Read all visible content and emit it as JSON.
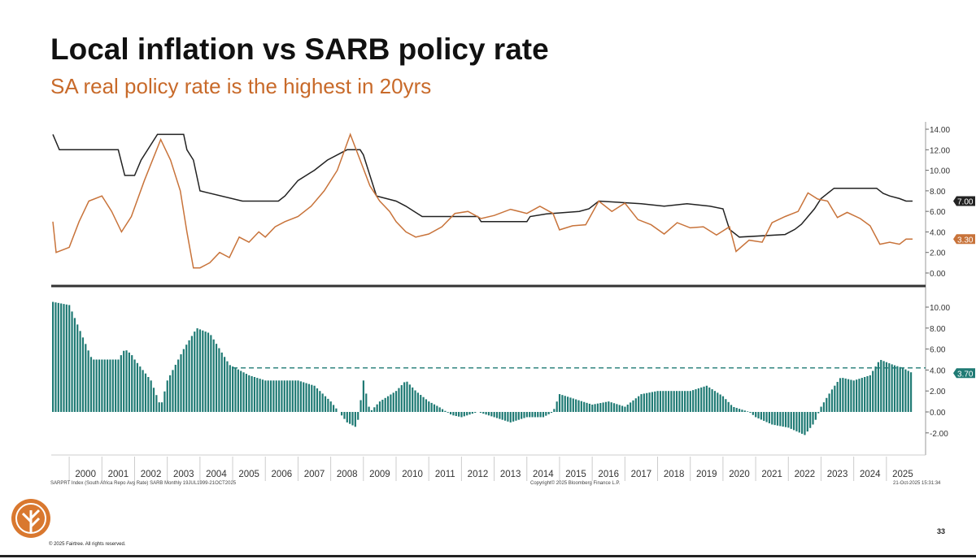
{
  "title": "Local inflation vs SARB policy rate",
  "subtitle": "SA real policy rate is the highest in 20yrs",
  "footnote_left": "SARPRT Index (South Africa Repo Avg Rate) SARB Monthly 19JUL1999-21OCT2025",
  "footnote_center": "Copyright© 2025 Bloomberg Finance L.P.",
  "footnote_right": "21-Oct-2025 15:31:34",
  "copyright": "© 2025 Fairtree. All rights reserved.",
  "page_number": "33",
  "colors": {
    "repo": "#222222",
    "inflation": "#c8733a",
    "real": "#1f7a74",
    "brand": "#d9782f"
  },
  "chart_data": [
    {
      "type": "line",
      "panel": "top",
      "ylim": [
        0,
        14
      ],
      "yticks": [
        "0.00",
        "2.00",
        "4.00",
        "6.00",
        "8.00",
        "10.00",
        "12.00",
        "14.00"
      ],
      "series": [
        {
          "key": "repo",
          "last_label": "7.00",
          "points": [
            [
              1999.5,
              13.5
            ],
            [
              1999.7,
              12
            ],
            [
              2001.5,
              12
            ],
            [
              2001.7,
              9.5
            ],
            [
              2002.0,
              9.5
            ],
            [
              2002.2,
              11
            ],
            [
              2002.7,
              13.5
            ],
            [
              2003.5,
              13.5
            ],
            [
              2003.6,
              12
            ],
            [
              2003.8,
              11
            ],
            [
              2004.0,
              8
            ],
            [
              2005.3,
              7
            ],
            [
              2006.4,
              7
            ],
            [
              2006.6,
              7.5
            ],
            [
              2007.0,
              9
            ],
            [
              2007.5,
              10
            ],
            [
              2007.9,
              11
            ],
            [
              2008.5,
              12
            ],
            [
              2008.9,
              12
            ],
            [
              2009.0,
              11.5
            ],
            [
              2009.2,
              9.5
            ],
            [
              2009.4,
              7.5
            ],
            [
              2010.0,
              7
            ],
            [
              2010.3,
              6.5
            ],
            [
              2010.8,
              5.5
            ],
            [
              2012.5,
              5.5
            ],
            [
              2012.6,
              5
            ],
            [
              2014.0,
              5
            ],
            [
              2014.1,
              5.5
            ],
            [
              2014.6,
              5.75
            ],
            [
              2015.6,
              6
            ],
            [
              2015.9,
              6.25
            ],
            [
              2016.2,
              7
            ],
            [
              2017.5,
              6.75
            ],
            [
              2018.2,
              6.5
            ],
            [
              2018.9,
              6.75
            ],
            [
              2019.6,
              6.5
            ],
            [
              2020.0,
              6.25
            ],
            [
              2020.2,
              4.25
            ],
            [
              2020.5,
              3.5
            ],
            [
              2021.9,
              3.75
            ],
            [
              2022.2,
              4.25
            ],
            [
              2022.4,
              4.75
            ],
            [
              2022.6,
              5.5
            ],
            [
              2022.8,
              6.25
            ],
            [
              2023.0,
              7.25
            ],
            [
              2023.2,
              7.75
            ],
            [
              2023.4,
              8.25
            ],
            [
              2024.7,
              8.25
            ],
            [
              2024.9,
              7.75
            ],
            [
              2025.1,
              7.5
            ],
            [
              2025.4,
              7.25
            ],
            [
              2025.6,
              7
            ],
            [
              2025.8,
              7
            ]
          ]
        },
        {
          "key": "inflation",
          "last_label": "3.30",
          "points": [
            [
              1999.5,
              5
            ],
            [
              1999.6,
              2
            ],
            [
              2000.0,
              2.5
            ],
            [
              2000.3,
              5
            ],
            [
              2000.6,
              7
            ],
            [
              2001.0,
              7.5
            ],
            [
              2001.3,
              6
            ],
            [
              2001.6,
              4
            ],
            [
              2001.9,
              5.5
            ],
            [
              2002.3,
              9
            ],
            [
              2002.8,
              13
            ],
            [
              2003.1,
              11
            ],
            [
              2003.4,
              8
            ],
            [
              2003.6,
              4
            ],
            [
              2003.8,
              0.5
            ],
            [
              2004.0,
              0.5
            ],
            [
              2004.3,
              1
            ],
            [
              2004.6,
              2
            ],
            [
              2004.9,
              1.5
            ],
            [
              2005.2,
              3.5
            ],
            [
              2005.5,
              3
            ],
            [
              2005.8,
              4
            ],
            [
              2006.0,
              3.5
            ],
            [
              2006.3,
              4.5
            ],
            [
              2006.6,
              5
            ],
            [
              2007.0,
              5.5
            ],
            [
              2007.4,
              6.5
            ],
            [
              2007.8,
              8
            ],
            [
              2008.2,
              10
            ],
            [
              2008.6,
              13.5
            ],
            [
              2008.9,
              11
            ],
            [
              2009.2,
              8.5
            ],
            [
              2009.5,
              7
            ],
            [
              2009.8,
              6
            ],
            [
              2010.0,
              5
            ],
            [
              2010.3,
              4
            ],
            [
              2010.6,
              3.5
            ],
            [
              2011.0,
              3.8
            ],
            [
              2011.4,
              4.5
            ],
            [
              2011.8,
              5.8
            ],
            [
              2012.2,
              6
            ],
            [
              2012.6,
              5.3
            ],
            [
              2013.0,
              5.6
            ],
            [
              2013.5,
              6.2
            ],
            [
              2014.0,
              5.8
            ],
            [
              2014.4,
              6.5
            ],
            [
              2014.8,
              5.8
            ],
            [
              2015.0,
              4.2
            ],
            [
              2015.4,
              4.6
            ],
            [
              2015.8,
              4.7
            ],
            [
              2016.2,
              7
            ],
            [
              2016.6,
              6
            ],
            [
              2017.0,
              6.8
            ],
            [
              2017.4,
              5.2
            ],
            [
              2017.8,
              4.7
            ],
            [
              2018.2,
              3.8
            ],
            [
              2018.6,
              4.9
            ],
            [
              2019.0,
              4.4
            ],
            [
              2019.4,
              4.5
            ],
            [
              2019.8,
              3.7
            ],
            [
              2020.2,
              4.5
            ],
            [
              2020.4,
              2.1
            ],
            [
              2020.8,
              3.2
            ],
            [
              2021.2,
              3
            ],
            [
              2021.5,
              4.9
            ],
            [
              2021.9,
              5.5
            ],
            [
              2022.3,
              6
            ],
            [
              2022.6,
              7.8
            ],
            [
              2022.9,
              7.2
            ],
            [
              2023.2,
              7
            ],
            [
              2023.5,
              5.4
            ],
            [
              2023.8,
              5.9
            ],
            [
              2024.2,
              5.3
            ],
            [
              2024.5,
              4.6
            ],
            [
              2024.8,
              2.8
            ],
            [
              2025.1,
              3
            ],
            [
              2025.4,
              2.8
            ],
            [
              2025.6,
              3.3
            ],
            [
              2025.8,
              3.3
            ]
          ]
        }
      ]
    },
    {
      "type": "bar",
      "panel": "bottom",
      "ylim": [
        -3,
        11
      ],
      "yticks": [
        "-2.00",
        "0.00",
        "2.00",
        "4.00",
        "6.00",
        "8.00",
        "10.00"
      ],
      "reference_line": 4.2,
      "series": [
        {
          "key": "real",
          "last_label": "3.70",
          "points": [
            [
              1999.5,
              10.5
            ],
            [
              2000.0,
              10.2
            ],
            [
              2000.7,
              5
            ],
            [
              2001.5,
              5
            ],
            [
              2001.7,
              6
            ],
            [
              2001.9,
              5.5
            ],
            [
              2002.0,
              5
            ],
            [
              2002.5,
              3
            ],
            [
              2002.8,
              0.5
            ],
            [
              2003.0,
              3
            ],
            [
              2003.5,
              6
            ],
            [
              2003.9,
              8
            ],
            [
              2004.3,
              7.5
            ],
            [
              2004.6,
              6
            ],
            [
              2004.9,
              4.5
            ],
            [
              2005.5,
              3.5
            ],
            [
              2006.0,
              3
            ],
            [
              2007.0,
              3
            ],
            [
              2007.5,
              2.5
            ],
            [
              2008.0,
              1
            ],
            [
              2008.5,
              -1
            ],
            [
              2008.8,
              -1.5
            ],
            [
              2009.0,
              3
            ],
            [
              2009.2,
              0
            ],
            [
              2009.5,
              1
            ],
            [
              2010.0,
              2
            ],
            [
              2010.3,
              3
            ],
            [
              2010.6,
              2
            ],
            [
              2011.0,
              1
            ],
            [
              2011.3,
              0.5
            ],
            [
              2011.7,
              -0.3
            ],
            [
              2012.0,
              -0.5
            ],
            [
              2012.5,
              0
            ],
            [
              2013.0,
              -0.5
            ],
            [
              2013.5,
              -1
            ],
            [
              2014.0,
              -0.5
            ],
            [
              2014.5,
              -0.5
            ],
            [
              2014.8,
              0
            ],
            [
              2015.0,
              1.7
            ],
            [
              2015.5,
              1.2
            ],
            [
              2016.0,
              0.7
            ],
            [
              2016.5,
              1
            ],
            [
              2017.0,
              0.5
            ],
            [
              2017.5,
              1.7
            ],
            [
              2018.0,
              2
            ],
            [
              2018.5,
              2
            ],
            [
              2019.0,
              2
            ],
            [
              2019.5,
              2.5
            ],
            [
              2020.0,
              1.5
            ],
            [
              2020.3,
              0.5
            ],
            [
              2020.8,
              0
            ],
            [
              2021.0,
              -0.5
            ],
            [
              2021.5,
              -1.2
            ],
            [
              2022.0,
              -1.5
            ],
            [
              2022.5,
              -2.2
            ],
            [
              2022.8,
              -1
            ],
            [
              2023.0,
              0.5
            ],
            [
              2023.3,
              2
            ],
            [
              2023.6,
              3.3
            ],
            [
              2024.0,
              3
            ],
            [
              2024.5,
              3.5
            ],
            [
              2024.8,
              5
            ],
            [
              2025.2,
              4.5
            ],
            [
              2025.5,
              4.2
            ],
            [
              2025.8,
              3.7
            ]
          ]
        }
      ]
    },
    {
      "type": "axis",
      "xticks": [
        "2000",
        "2001",
        "2002",
        "2003",
        "2004",
        "2005",
        "2006",
        "2007",
        "2008",
        "2009",
        "2010",
        "2011",
        "2012",
        "2013",
        "2014",
        "2015",
        "2016",
        "2017",
        "2018",
        "2019",
        "2020",
        "2021",
        "2022",
        "2023",
        "2024",
        "2025"
      ],
      "xlim": [
        1999.5,
        2025.8
      ]
    }
  ]
}
